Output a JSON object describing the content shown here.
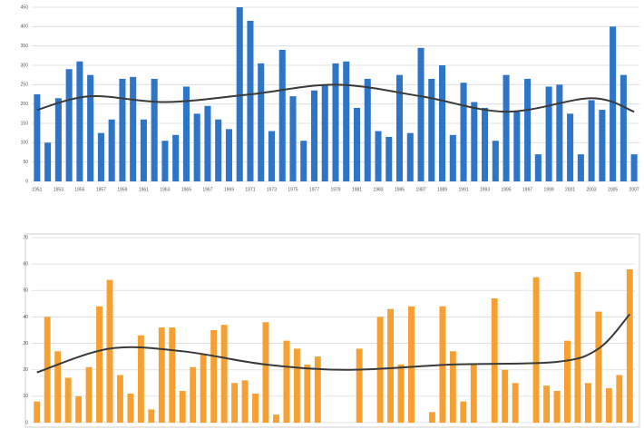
{
  "chart_data": [
    {
      "type": "bar",
      "categories": [
        "1951",
        null,
        "1953",
        null,
        "1955",
        null,
        "1957",
        null,
        "1959",
        null,
        "1961",
        null,
        "1963",
        null,
        "1965",
        null,
        "1967",
        null,
        "1969",
        null,
        "1971",
        null,
        "1973",
        null,
        "1975",
        null,
        "1977",
        null,
        "1979",
        null,
        "1981",
        null,
        "1983",
        null,
        "1985",
        null,
        "1987",
        null,
        "1989",
        null,
        "1991",
        null,
        "1993",
        null,
        "1995",
        null,
        "1997",
        null,
        "1999",
        null,
        "2001",
        null,
        "2003",
        null,
        "2005",
        null,
        "2007"
      ],
      "series": [
        {
          "color": "#2e75c8",
          "values": [
            225,
            100,
            215,
            290,
            310,
            275,
            125,
            160,
            265,
            270,
            160,
            265,
            105,
            120,
            245,
            175,
            195,
            160,
            135,
            450,
            415,
            305,
            130,
            340,
            220,
            105,
            235,
            250,
            305,
            310,
            190,
            265,
            130,
            115,
            275,
            125,
            345,
            265,
            300,
            120,
            255,
            205,
            190,
            105,
            275,
            180,
            265,
            70,
            245,
            250,
            175,
            70,
            210,
            185,
            400,
            275,
            70
          ]
        }
      ],
      "trend": {
        "color": "#3a3a3a",
        "x": [
          0,
          5,
          12,
          20,
          28,
          36,
          44,
          52,
          56
        ],
        "values": [
          185,
          220,
          205,
          225,
          250,
          220,
          180,
          215,
          180
        ]
      },
      "ylim": [
        0,
        450
      ],
      "yticks": [
        0,
        50,
        100,
        150,
        200,
        250,
        300,
        350,
        400,
        450
      ],
      "grid": true
    },
    {
      "type": "bar",
      "series": [
        {
          "color": "#f5a030",
          "values": [
            8,
            40,
            27,
            17,
            10,
            21,
            44,
            54,
            18,
            11,
            33,
            5,
            36,
            36,
            12,
            21,
            26,
            35,
            37,
            15,
            16,
            11,
            38,
            3,
            31,
            28,
            22,
            25,
            0,
            0,
            0,
            28,
            0,
            40,
            43,
            22,
            44,
            0,
            4,
            44,
            27,
            8,
            22,
            0,
            47,
            20,
            15,
            0,
            55,
            14,
            12,
            31,
            57,
            15,
            42,
            13,
            18,
            58
          ]
        }
      ],
      "trend": {
        "color": "#3a3a3a",
        "x": [
          0,
          7,
          14,
          22,
          30,
          40,
          50,
          54,
          57
        ],
        "values": [
          19,
          28,
          27,
          22,
          20,
          22,
          23,
          28,
          41
        ]
      },
      "ylim": [
        0,
        70
      ],
      "yticks": [
        0,
        10,
        20,
        30,
        40,
        50,
        60,
        70
      ],
      "grid": true
    }
  ]
}
